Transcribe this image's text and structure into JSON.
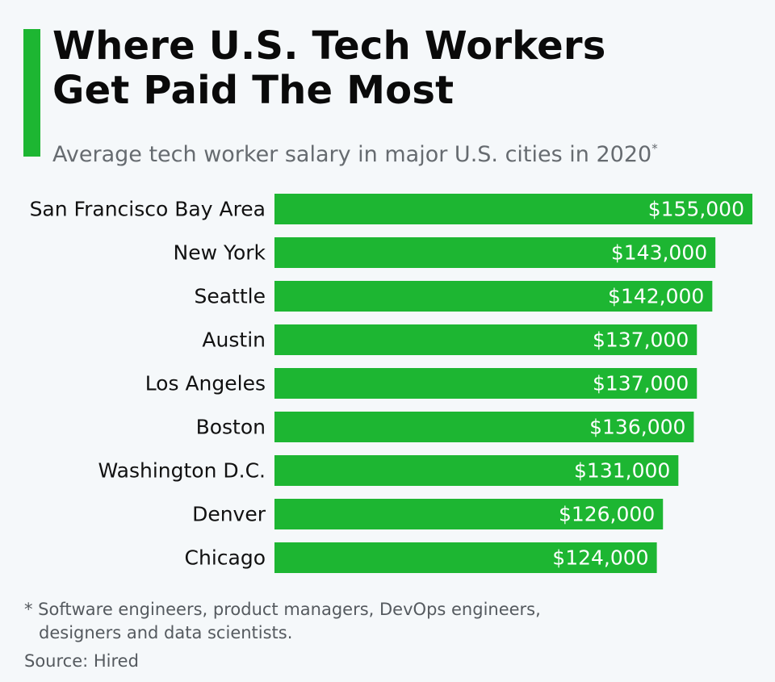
{
  "header": {
    "title_line1": "Where U.S. Tech Workers",
    "title_line2": "Get Paid The Most",
    "subtitle": "Average tech worker salary in major U.S. cities in 2020",
    "subtitle_mark": "*"
  },
  "footer": {
    "footnote_line1": "* Software engineers, product managers, DevOps engineers,",
    "footnote_line2": "designers and data scientists.",
    "source": "Source: Hired"
  },
  "colors": {
    "accent": "#1db632",
    "bar": "#1db632",
    "background": "#f5f8fa"
  },
  "chart_data": {
    "type": "bar",
    "orientation": "horizontal",
    "title": "Where U.S. Tech Workers Get Paid The Most",
    "subtitle": "Average tech worker salary in major U.S. cities in 2020*",
    "categories": [
      "San Francisco Bay Area",
      "New York",
      "Seattle",
      "Austin",
      "Los Angeles",
      "Boston",
      "Washington D.C.",
      "Denver",
      "Chicago"
    ],
    "values": [
      155000,
      143000,
      142000,
      137000,
      137000,
      136000,
      131000,
      126000,
      124000
    ],
    "value_labels": [
      "$155,000",
      "$143,000",
      "$142,000",
      "$137,000",
      "$137,000",
      "$136,000",
      "$131,000",
      "$126,000",
      "$124,000"
    ],
    "xlim": [
      0,
      155000
    ],
    "grid": false,
    "legend": "none"
  }
}
